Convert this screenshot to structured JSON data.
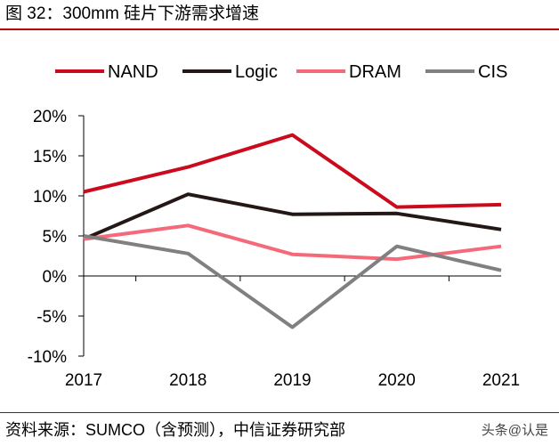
{
  "figure": {
    "title": "图 32：300mm 硅片下游需求增速",
    "source": "资料来源：SUMCO（含预测），中信证券研究部",
    "watermark": "头条@认是"
  },
  "colors": {
    "rule": "#b30000",
    "axis": "#000000"
  },
  "chart_data": {
    "type": "line",
    "title": "图 32：300mm 硅片下游需求增速",
    "xlabel": "",
    "ylabel": "",
    "categories": [
      "2017",
      "2018",
      "2019",
      "2020",
      "2021"
    ],
    "ylim": [
      -10,
      20
    ],
    "yticks": [
      -10,
      -5,
      0,
      5,
      10,
      15,
      20
    ],
    "ytick_labels": [
      "-10%",
      "-5%",
      "0%",
      "5%",
      "10%",
      "15%",
      "20%"
    ],
    "legend_position": "top",
    "grid": false,
    "series": [
      {
        "name": "NAND",
        "color": "#cc0a1e",
        "values": [
          10.5,
          13.6,
          17.6,
          8.6,
          8.9
        ]
      },
      {
        "name": "Logic",
        "color": "#231815",
        "values": [
          4.6,
          10.2,
          7.7,
          7.8,
          5.8
        ]
      },
      {
        "name": "DRAM",
        "color": "#f46a7a",
        "values": [
          4.6,
          6.3,
          2.7,
          2.1,
          3.7
        ]
      },
      {
        "name": "CIS",
        "color": "#808080",
        "values": [
          5.0,
          2.8,
          -6.4,
          3.7,
          0.7
        ]
      }
    ]
  }
}
